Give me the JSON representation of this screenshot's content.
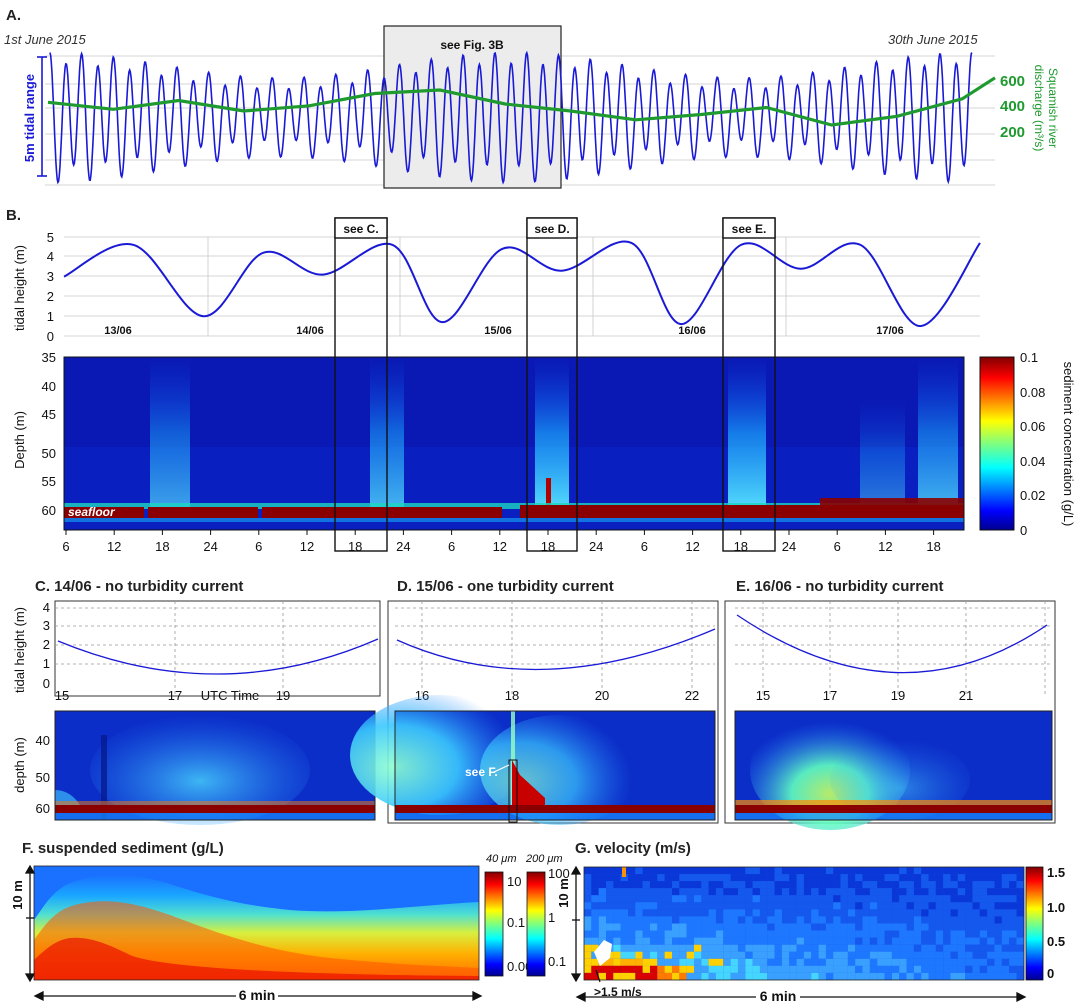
{
  "panel_a": {
    "label": "A.",
    "start_date": "1st June 2015",
    "end_date": "30th June 2015",
    "see_label": "see Fig. 3B",
    "tidal_range_label": "5m tidal range",
    "discharge_label_1": "Squamish river",
    "discharge_label_2": "discharge (m³/s)",
    "discharge_ticks": [
      "600",
      "400",
      "200"
    ],
    "colors": {
      "tide": "#1a1ad6",
      "discharge": "#1e9a2e"
    }
  },
  "panel_b": {
    "label": "B.",
    "see_labels": [
      "see C.",
      "see D.",
      "see E."
    ],
    "ylabel_tide": "tidal height (m)",
    "yticks_tide": [
      "5",
      "4",
      "3",
      "2",
      "1",
      "0"
    ],
    "day_labels": [
      "13/06",
      "14/06",
      "15/06",
      "16/06",
      "17/06"
    ],
    "ylabel_depth": "Depth (m)",
    "yticks_depth": [
      "35",
      "40",
      "45",
      "50",
      "55",
      "60"
    ],
    "xticks": [
      "6",
      "12",
      "18",
      "24",
      "6",
      "12",
      "18",
      "24",
      "6",
      "12",
      "18",
      "24",
      "6",
      "12",
      "18",
      "24",
      "6",
      "12",
      "18"
    ],
    "seafloor_label": "seafloor",
    "colorbar_label": "sediment concentration (g/L)",
    "colorbar_ticks": [
      "0.1",
      "0.08",
      "0.06",
      "0.04",
      "0.02",
      "0"
    ]
  },
  "panel_c": {
    "title": "C. 14/06 - no turbidity current",
    "xticks": [
      "15",
      "17",
      "19"
    ],
    "xlabel": "UTC Time",
    "ylabel_tide": "tidal height (m)",
    "yticks_tide": [
      "4",
      "3",
      "2",
      "1",
      "0"
    ],
    "ylabel_depth": "depth (m)",
    "yticks_depth": [
      "40",
      "50",
      "60"
    ]
  },
  "panel_d": {
    "title": "D. 15/06 - one turbidity current",
    "xticks": [
      "16",
      "18",
      "20",
      "22"
    ],
    "see_label": "see F."
  },
  "panel_e": {
    "title": "E.  16/06 - no turbidity current",
    "xticks": [
      "15",
      "17",
      "19",
      "21"
    ]
  },
  "panel_f": {
    "title": "F. suspended sediment (g/L)",
    "ylabel": "10 m",
    "duration": "6 min",
    "cb1_label": "40 μm",
    "cb1_ticks": [
      "10",
      "0.1",
      "0.001"
    ],
    "cb2_label": "200 μm",
    "cb2_ticks": [
      "100",
      "1",
      "0.1"
    ]
  },
  "panel_g": {
    "title": "G. velocity (m/s)",
    "ylabel": "10 m",
    "duration": "6 min",
    "annotation": ">1.5 m/s",
    "colorbar_ticks": [
      "1.5",
      "1.0",
      "0.5",
      "0"
    ]
  },
  "chart_data": [
    {
      "type": "line",
      "title": "A.",
      "series": [
        {
          "name": "5m tidal range",
          "description_values": "semi-diurnal tide 1–30 June 2015"
        },
        {
          "name": "Squamish river discharge (m³/s)",
          "x": [
            1,
            3,
            5,
            7,
            9,
            11,
            13,
            15,
            17,
            19,
            21,
            23,
            25,
            27,
            29,
            30
          ],
          "values": [
            430,
            390,
            440,
            380,
            410,
            480,
            500,
            420,
            380,
            330,
            360,
            400,
            300,
            350,
            450,
            570
          ]
        }
      ],
      "ylim_discharge": [
        100,
        700
      ]
    },
    {
      "type": "line",
      "title": "B. tidal height",
      "xlabel": "",
      "ylabel": "tidal height (m)",
      "ylim": [
        0,
        5
      ],
      "series": [
        {
          "name": "tidal height",
          "x_hours": [
            3,
            10,
            17,
            23,
            29,
            36,
            41,
            47,
            53,
            60,
            65,
            71,
            77,
            83,
            89,
            95
          ],
          "values": [
            3.0,
            4.6,
            1.0,
            4.2,
            3.1,
            4.6,
            0.7,
            4.4,
            3.3,
            4.7,
            0.6,
            4.6,
            3.4,
            4.6,
            0.5,
            4.7
          ]
        }
      ]
    },
    {
      "type": "heatmap",
      "title": "B. sediment concentration",
      "ylabel": "Depth (m)",
      "ylim": [
        35,
        63
      ],
      "colorbar_range": [
        0,
        0.1
      ],
      "colorbar_label": "sediment concentration (g/L)"
    }
  ]
}
